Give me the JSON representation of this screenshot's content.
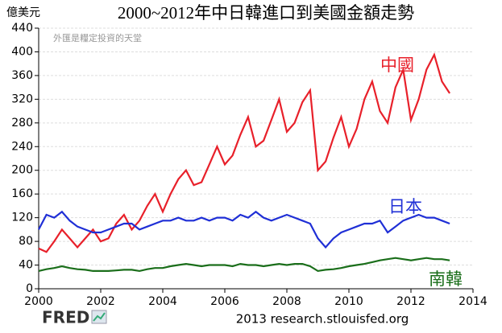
{
  "chart_data": {
    "type": "line",
    "title": "2000~2012年中日韓進口到美國金額走勢",
    "unit_label": "億美元",
    "watermark": "外匯是糧定投資的天堂",
    "logo": "FRED",
    "source": "2013 research.stlouisfed.org",
    "x": [
      2000,
      2000.25,
      2000.5,
      2000.75,
      2001,
      2001.25,
      2001.5,
      2001.75,
      2002,
      2002.25,
      2002.5,
      2002.75,
      2003,
      2003.25,
      2003.5,
      2003.75,
      2004,
      2004.25,
      2004.5,
      2004.75,
      2005,
      2005.25,
      2005.5,
      2005.75,
      2006,
      2006.25,
      2006.5,
      2006.75,
      2007,
      2007.25,
      2007.5,
      2007.75,
      2008,
      2008.25,
      2008.5,
      2008.75,
      2009,
      2009.25,
      2009.5,
      2009.75,
      2010,
      2010.25,
      2010.5,
      2010.75,
      2011,
      2011.25,
      2011.5,
      2011.75,
      2012,
      2012.25,
      2012.5,
      2012.75,
      2013,
      2013.25
    ],
    "series": [
      {
        "name": "中國",
        "color": "#e8202a",
        "values": [
          68,
          62,
          80,
          100,
          85,
          70,
          85,
          100,
          80,
          85,
          110,
          125,
          100,
          115,
          140,
          160,
          130,
          160,
          185,
          200,
          175,
          180,
          210,
          240,
          210,
          225,
          260,
          290,
          240,
          250,
          285,
          320,
          265,
          280,
          315,
          335,
          200,
          215,
          255,
          290,
          240,
          270,
          320,
          350,
          300,
          280,
          340,
          370,
          285,
          320,
          370,
          395,
          350,
          330
        ]
      },
      {
        "name": "日本",
        "color": "#1f2fd6",
        "values": [
          100,
          125,
          120,
          130,
          115,
          105,
          100,
          95,
          95,
          100,
          105,
          110,
          110,
          100,
          105,
          110,
          115,
          115,
          120,
          115,
          115,
          120,
          115,
          120,
          120,
          115,
          125,
          120,
          130,
          120,
          115,
          120,
          125,
          120,
          115,
          110,
          85,
          70,
          85,
          95,
          100,
          105,
          110,
          110,
          115,
          95,
          105,
          115,
          120,
          125,
          120,
          120,
          115,
          110
        ]
      },
      {
        "name": "南韓",
        "color": "#1a6e1a",
        "values": [
          30,
          33,
          35,
          38,
          35,
          33,
          32,
          30,
          30,
          30,
          31,
          32,
          32,
          30,
          33,
          35,
          35,
          38,
          40,
          42,
          40,
          38,
          40,
          40,
          40,
          38,
          42,
          40,
          40,
          38,
          40,
          42,
          40,
          42,
          42,
          38,
          30,
          32,
          33,
          35,
          38,
          40,
          42,
          45,
          48,
          50,
          52,
          50,
          48,
          50,
          52,
          50,
          50,
          48
        ]
      }
    ],
    "xlim": [
      2000,
      2014
    ],
    "xticks": [
      2000,
      2002,
      2004,
      2006,
      2008,
      2010,
      2012,
      2014
    ],
    "ylim": [
      0,
      440
    ],
    "yticks": [
      0,
      40,
      80,
      120,
      160,
      200,
      240,
      280,
      320,
      360,
      400,
      440
    ],
    "grid": true
  }
}
